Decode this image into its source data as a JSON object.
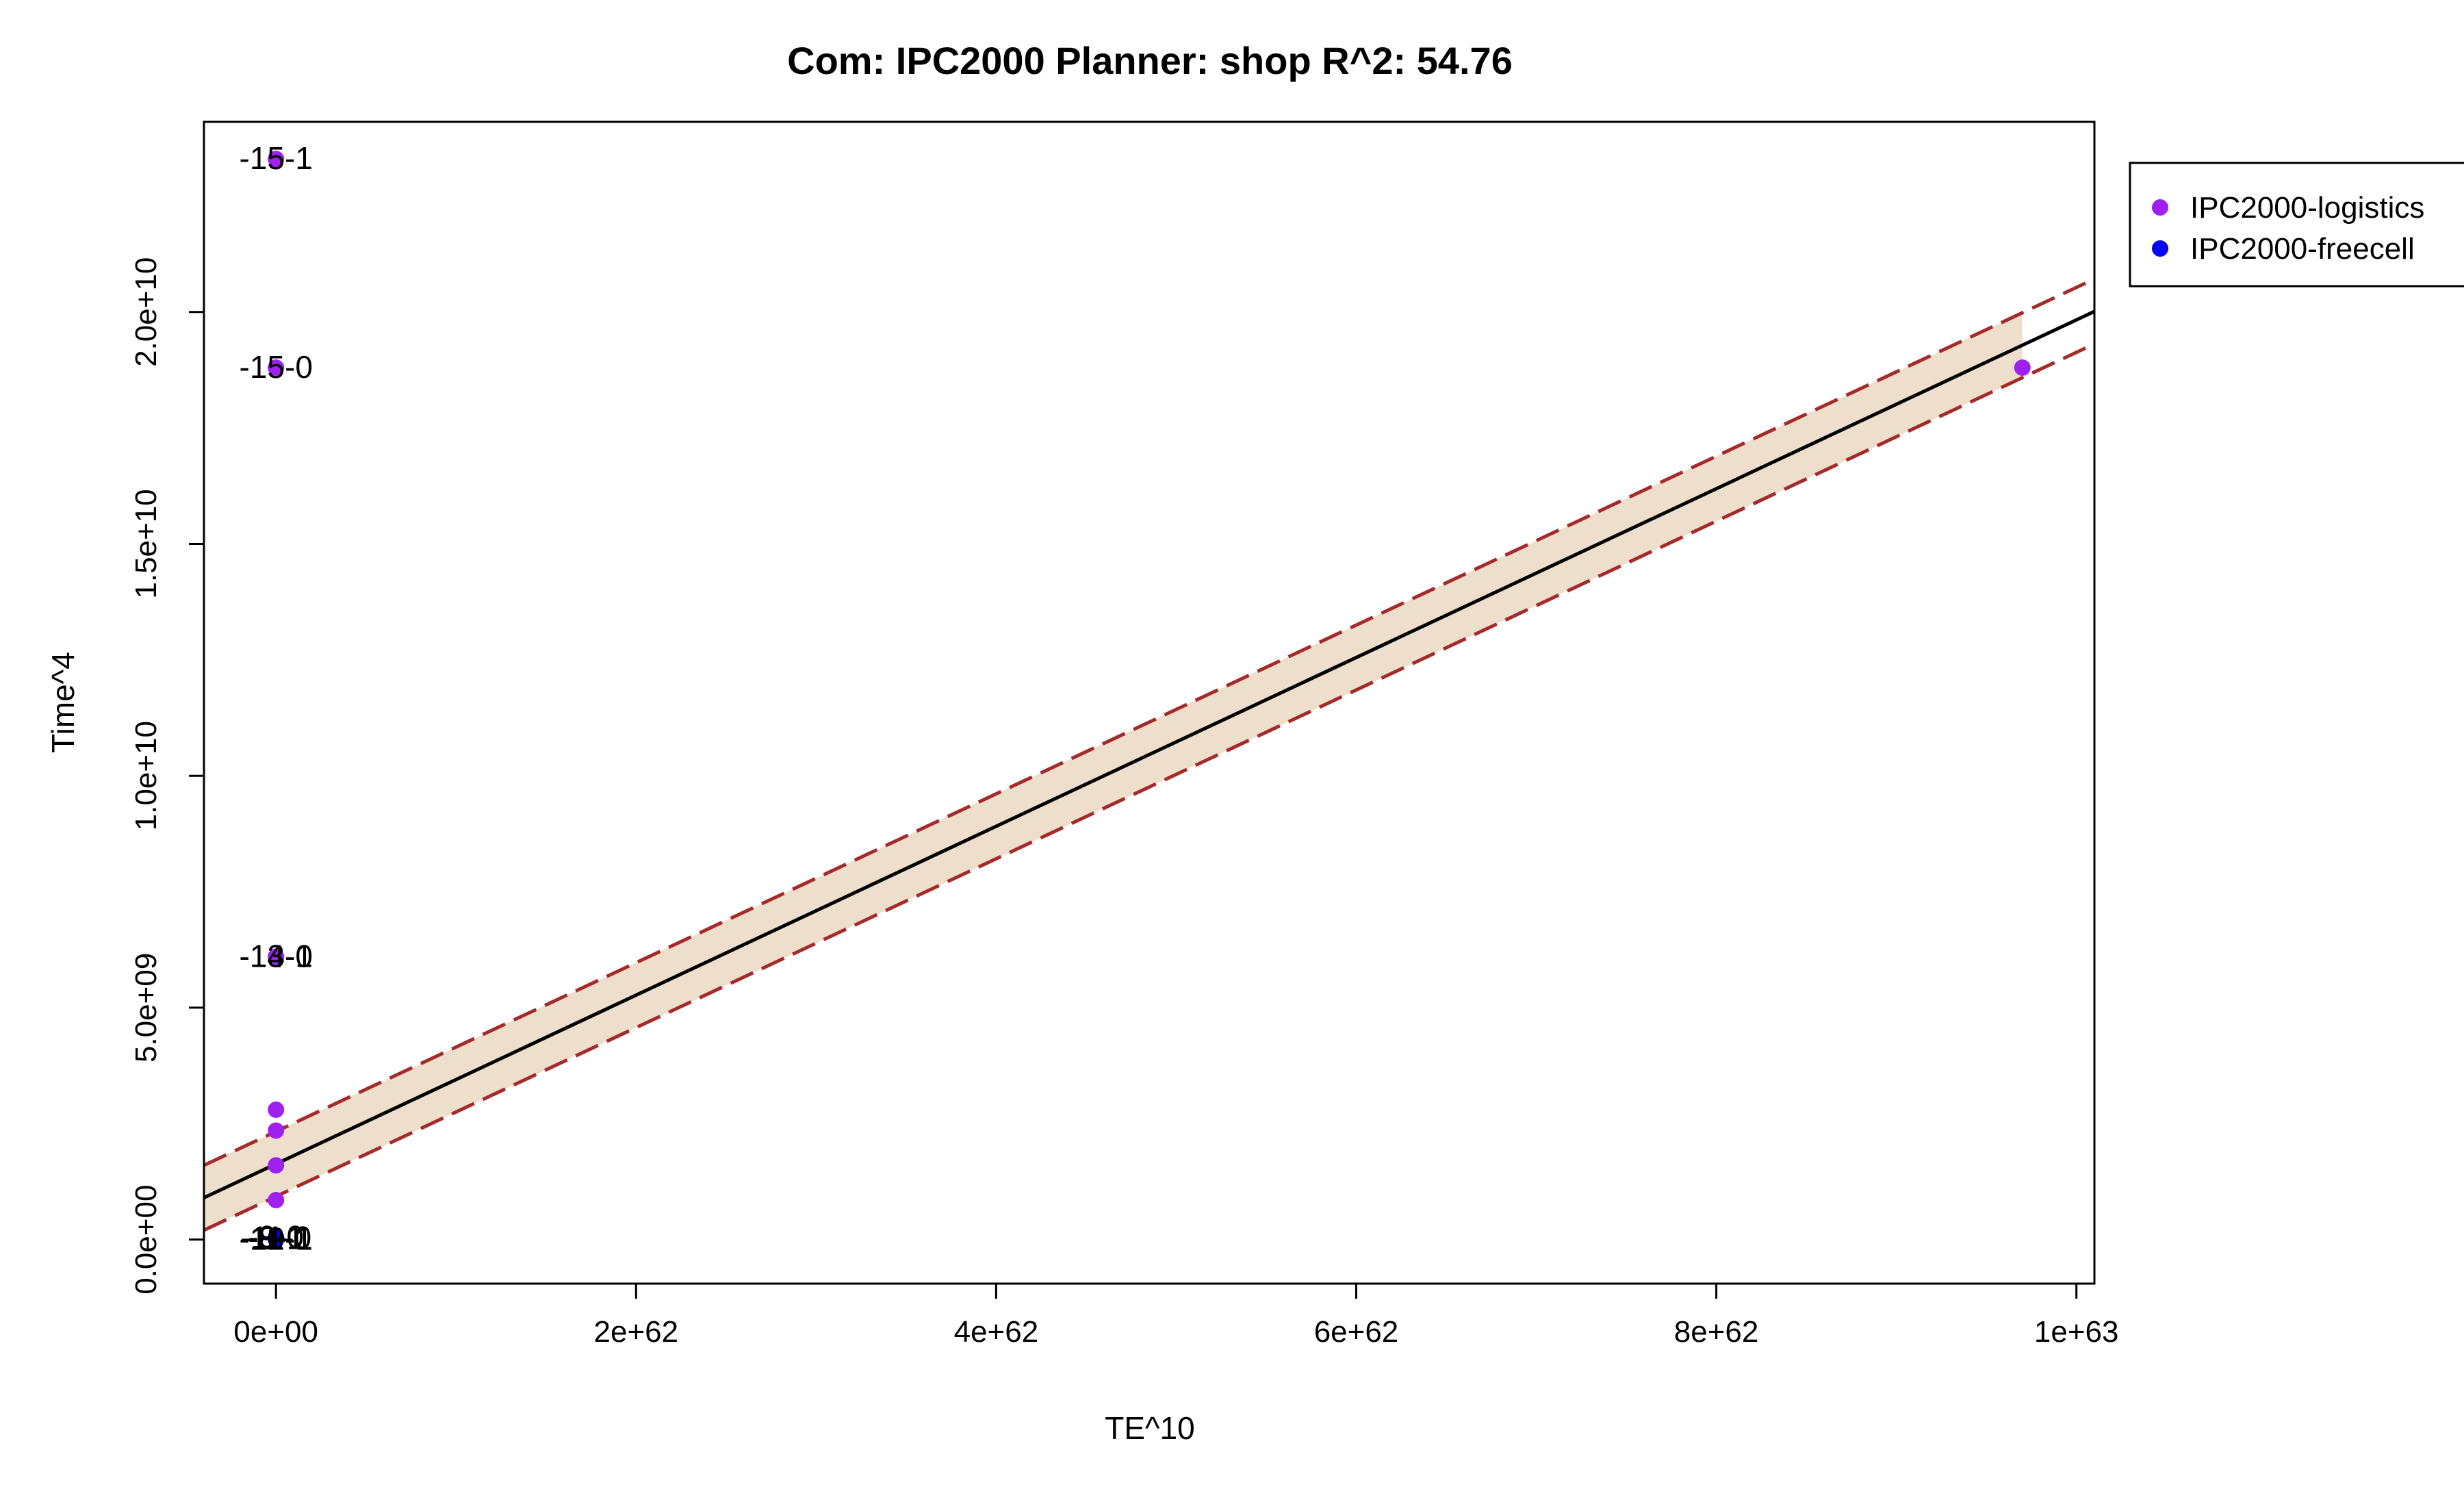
{
  "chart_data": {
    "type": "scatter",
    "title": "Com: IPC2000 Planner: shop R^2: 54.76",
    "xlabel": "TE^10",
    "ylabel": "Time^4",
    "xlim": [
      -4e+61,
      1.01e+63
    ],
    "ylim": [
      -950000000.0,
      24100000000.0
    ],
    "x_ticks": [
      0,
      2e+62,
      4e+62,
      6e+62,
      8e+62,
      1e+63
    ],
    "x_tick_labels": [
      "0e+00",
      "2e+62",
      "4e+62",
      "6e+62",
      "8e+62",
      "1e+63"
    ],
    "y_ticks": [
      0,
      5000000000.0,
      10000000000.0,
      15000000000.0,
      20000000000.0
    ],
    "y_tick_labels": [
      "0.0e+00",
      "5.0e+09",
      "1.0e+10",
      "1.5e+10",
      "2.0e+10"
    ],
    "grid": false,
    "legend_position": "right-outside-top",
    "legend": [
      {
        "name": "IPC2000-logistics",
        "color": "#a020f0"
      },
      {
        "name": "IPC2000-freecell",
        "color": "#0000ff"
      }
    ],
    "series": [
      {
        "name": "IPC2000-logistics",
        "color": "#a020f0",
        "points": [
          {
            "x": 0,
            "y": 23300000000.0,
            "label": "-15-1"
          },
          {
            "x": 0,
            "y": 18800000000.0,
            "label": "-15-0"
          },
          {
            "x": 0,
            "y": 6100000000.0,
            "label": "-14-0"
          },
          {
            "x": 0,
            "y": 6100000000.0,
            "label": "-13-1"
          },
          {
            "x": 0,
            "y": 2800000000.0
          },
          {
            "x": 0,
            "y": 2350000000.0
          },
          {
            "x": 0,
            "y": 1600000000.0
          },
          {
            "x": 0,
            "y": 850000000.0
          },
          {
            "x": 9.7e+62,
            "y": 18800000000.0
          }
        ]
      },
      {
        "name": "IPC2000-freecell",
        "color": "#0000ff",
        "points": [
          {
            "x": 0,
            "y": 0,
            "label": "-12-1"
          },
          {
            "x": 0,
            "y": 30000000.0,
            "label": "-11-0"
          },
          {
            "x": 0,
            "y": 10000000.0,
            "label": "-10-1"
          },
          {
            "x": 0,
            "y": 50000000.0,
            "label": "-9-0"
          },
          {
            "x": 0,
            "y": 20000000.0,
            "label": "-8-1"
          }
        ]
      }
    ],
    "fit": {
      "intercept": 1630000000.0,
      "slope": 1.82e-53,
      "color": "#000000"
    },
    "band": {
      "offset": 700000000.0,
      "line_color": "#a52a2a",
      "fill": "#eedfcc",
      "x_fill_end": 9.7e+62
    }
  }
}
